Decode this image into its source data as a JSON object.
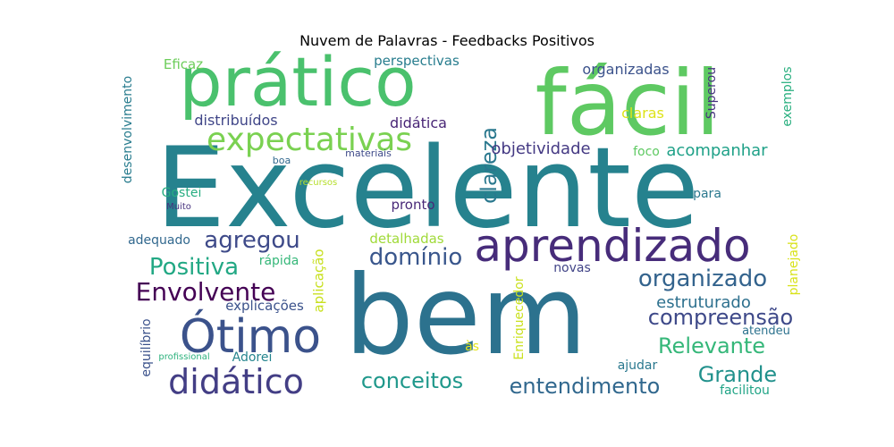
{
  "title": "Nuvem de Palavras - Feedbacks Positivos",
  "words": [
    {
      "text": "Excelente",
      "color": "#26828e"
    },
    {
      "text": "bem",
      "color": "#2c728e"
    },
    {
      "text": "fácil",
      "color": "#5ec962"
    },
    {
      "text": "prático",
      "color": "#4ac16d"
    },
    {
      "text": "aprendizado",
      "color": "#472c7a"
    },
    {
      "text": "expectativas",
      "color": "#7ad151"
    },
    {
      "text": "Ótimo",
      "color": "#3b528b"
    },
    {
      "text": "didático",
      "color": "#433e85"
    },
    {
      "text": "Envolvente",
      "color": "#440154"
    },
    {
      "text": "Positiva",
      "color": "#22a884"
    },
    {
      "text": "agregou",
      "color": "#3e4a89"
    },
    {
      "text": "domínio",
      "color": "#39568c"
    },
    {
      "text": "clareza",
      "color": "#2a788e"
    },
    {
      "text": "organizado",
      "color": "#33638d"
    },
    {
      "text": "compreensão",
      "color": "#3e4989"
    },
    {
      "text": "Relevante",
      "color": "#35b779"
    },
    {
      "text": "Grande",
      "color": "#21918c"
    },
    {
      "text": "conceitos",
      "color": "#1f988b"
    },
    {
      "text": "entendimento",
      "color": "#31688e"
    },
    {
      "text": "estruturado",
      "color": "#2d708e"
    },
    {
      "text": "acompanhar",
      "color": "#1fa188"
    },
    {
      "text": "objetividade",
      "color": "#443983"
    },
    {
      "text": "distribuídos",
      "color": "#404688"
    },
    {
      "text": "didática",
      "color": "#482576"
    },
    {
      "text": "organizadas",
      "color": "#3b528b"
    },
    {
      "text": "perspectivas",
      "color": "#287d8e"
    },
    {
      "text": "Eficaz",
      "color": "#6ccd5a"
    },
    {
      "text": "claras",
      "color": "#dde318"
    },
    {
      "text": "Superou",
      "color": "#46337e"
    },
    {
      "text": "exemplos",
      "color": "#29af7f"
    },
    {
      "text": "desenvolvimento",
      "color": "#287c8e"
    },
    {
      "text": "foco",
      "color": "#5ec962"
    },
    {
      "text": "para",
      "color": "#2a788e"
    },
    {
      "text": "boa",
      "color": "#31688e"
    },
    {
      "text": "materiais",
      "color": "#3e4a89"
    },
    {
      "text": "recursos",
      "color": "#b5de2b"
    },
    {
      "text": "Gostei",
      "color": "#27ad81"
    },
    {
      "text": "Muito",
      "color": "#46327e"
    },
    {
      "text": "pronto",
      "color": "#482878"
    },
    {
      "text": "adequado",
      "color": "#31688e"
    },
    {
      "text": "detalhadas",
      "color": "#a0da39"
    },
    {
      "text": "rápida",
      "color": "#35b779"
    },
    {
      "text": "aplicação",
      "color": "#c8e020"
    },
    {
      "text": "novas",
      "color": "#414487"
    },
    {
      "text": "Enriquecedor",
      "color": "#cae11f"
    },
    {
      "text": "planejado",
      "color": "#d8e219"
    },
    {
      "text": "explicações",
      "color": "#3b528b"
    },
    {
      "text": "equilíbrio",
      "color": "#3b528b"
    },
    {
      "text": "atendeu",
      "color": "#2c728e"
    },
    {
      "text": "às",
      "color": "#e5e419"
    },
    {
      "text": "profissional",
      "color": "#2db27d"
    },
    {
      "text": "Adorei",
      "color": "#25858e"
    },
    {
      "text": "ajudar",
      "color": "#2a788e"
    },
    {
      "text": "facilitou",
      "color": "#20a486"
    }
  ]
}
